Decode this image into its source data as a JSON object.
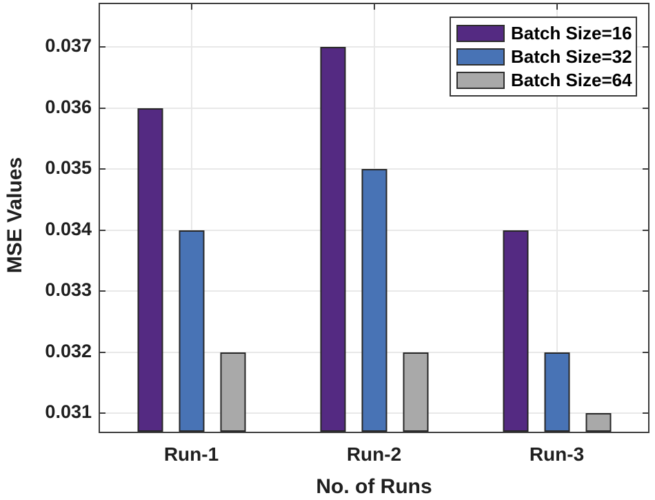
{
  "figure": {
    "background": "#ffffff",
    "axis_color": "#3c3c3c",
    "grid_color": "#e8e8e8",
    "text_color": "#1f1f1f"
  },
  "chart_data": {
    "type": "bar",
    "title": "",
    "xlabel": "No. of Runs",
    "ylabel": "MSE Values",
    "categories": [
      "Run-1",
      "Run-2",
      "Run-3"
    ],
    "series": [
      {
        "name": "Batch Size=16",
        "color": "#542a82",
        "values": [
          0.036,
          0.037,
          0.034
        ]
      },
      {
        "name": "Batch Size=32",
        "color": "#4873b5",
        "values": [
          0.034,
          0.035,
          0.032
        ]
      },
      {
        "name": "Batch Size=64",
        "color": "#a9a9a9",
        "values": [
          0.032,
          0.032,
          0.031
        ]
      }
    ],
    "bar_edge_color": "#262626",
    "yticks": [
      0.031,
      0.032,
      0.033,
      0.034,
      0.035,
      0.036,
      0.037
    ],
    "ytick_labels": [
      "0.031",
      "0.032",
      "0.033",
      "0.034",
      "0.035",
      "0.036",
      "0.037"
    ],
    "ylim": [
      0.0307,
      0.0377
    ],
    "grid": true,
    "legend_position": "top-right"
  }
}
